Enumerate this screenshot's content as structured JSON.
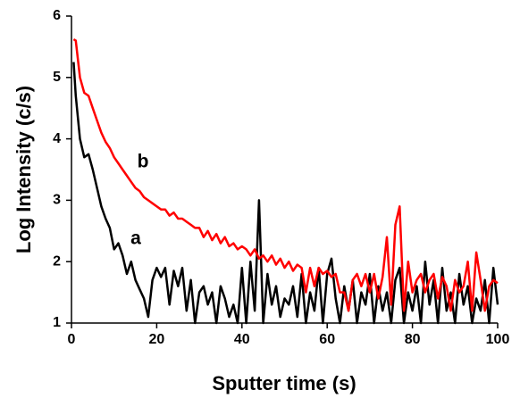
{
  "chart_data": {
    "type": "line",
    "x_label": "Sputter time (s)",
    "y_label": "Log Intensity (c/s)",
    "x": [
      0.5,
      1,
      2,
      3,
      4,
      5,
      6,
      7,
      8,
      9,
      10,
      11,
      12,
      13,
      14,
      15,
      16,
      17,
      18,
      19,
      20,
      21,
      22,
      23,
      24,
      25,
      26,
      27,
      28,
      29,
      30,
      31,
      32,
      33,
      34,
      35,
      36,
      37,
      38,
      39,
      40,
      41,
      42,
      43,
      44,
      45,
      46,
      47,
      48,
      49,
      50,
      51,
      52,
      53,
      54,
      55,
      56,
      57,
      58,
      59,
      60,
      61,
      62,
      63,
      64,
      65,
      66,
      67,
      68,
      69,
      70,
      71,
      72,
      73,
      74,
      75,
      76,
      77,
      78,
      79,
      80,
      81,
      82,
      83,
      84,
      85,
      86,
      87,
      88,
      89,
      90,
      91,
      92,
      93,
      94,
      95,
      96,
      97,
      98,
      99,
      100
    ],
    "series": [
      {
        "name": "a",
        "color": "#000000",
        "values": [
          5.25,
          4.7,
          4.0,
          3.7,
          3.75,
          3.5,
          3.2,
          2.9,
          2.7,
          2.55,
          2.2,
          2.3,
          2.1,
          1.8,
          2.0,
          1.7,
          1.55,
          1.4,
          1.1,
          1.7,
          1.9,
          1.75,
          1.9,
          1.3,
          1.85,
          1.6,
          1.9,
          1.2,
          1.7,
          1.0,
          1.5,
          1.6,
          1.3,
          1.5,
          1.0,
          1.6,
          1.4,
          1.1,
          1.3,
          1.0,
          1.9,
          1.0,
          2.0,
          1.2,
          3.0,
          1.0,
          1.8,
          1.3,
          1.6,
          1.1,
          1.4,
          1.3,
          1.6,
          1.1,
          1.8,
          1.0,
          1.5,
          1.2,
          1.9,
          1.0,
          1.8,
          2.05,
          1.4,
          1.0,
          1.6,
          1.2,
          1.7,
          1.0,
          1.5,
          1.3,
          1.8,
          1.0,
          1.6,
          1.2,
          1.5,
          1.0,
          1.7,
          1.9,
          1.0,
          1.5,
          1.2,
          1.6,
          1.0,
          2.0,
          1.3,
          1.7,
          1.0,
          1.9,
          1.2,
          1.5,
          1.0,
          1.8,
          1.3,
          1.6,
          1.0,
          1.4,
          1.2,
          1.7,
          1.0,
          1.9,
          1.3
        ]
      },
      {
        "name": "b",
        "color": "#ff0000",
        "values": [
          5.62,
          5.6,
          5.0,
          4.75,
          4.7,
          4.5,
          4.3,
          4.1,
          3.95,
          3.85,
          3.7,
          3.6,
          3.5,
          3.4,
          3.3,
          3.2,
          3.15,
          3.05,
          3.0,
          2.95,
          2.9,
          2.85,
          2.85,
          2.75,
          2.8,
          2.7,
          2.7,
          2.65,
          2.6,
          2.55,
          2.55,
          2.4,
          2.5,
          2.35,
          2.45,
          2.3,
          2.4,
          2.25,
          2.3,
          2.2,
          2.25,
          2.2,
          2.1,
          2.2,
          2.05,
          2.1,
          2.0,
          2.1,
          1.95,
          2.05,
          1.9,
          2.0,
          1.85,
          1.95,
          1.9,
          1.5,
          1.9,
          1.6,
          1.9,
          1.8,
          1.85,
          1.75,
          1.8,
          1.5,
          1.5,
          1.2,
          1.7,
          1.8,
          1.6,
          1.8,
          1.5,
          1.8,
          1.4,
          1.75,
          2.4,
          1.3,
          2.6,
          2.9,
          1.2,
          2.0,
          1.5,
          1.7,
          1.8,
          1.5,
          1.7,
          1.8,
          1.4,
          1.75,
          1.6,
          1.2,
          1.7,
          1.5,
          1.6,
          2.0,
          1.2,
          2.15,
          1.7,
          1.2,
          1.6,
          1.7,
          1.65
        ]
      }
    ],
    "annotations": [
      "a",
      "b"
    ],
    "xlim": [
      0,
      100
    ],
    "xticks": [
      0,
      20,
      40,
      60,
      80,
      100
    ],
    "ylim": [
      1,
      6
    ],
    "yticks": [
      1,
      2,
      3,
      4,
      5,
      6
    ]
  }
}
